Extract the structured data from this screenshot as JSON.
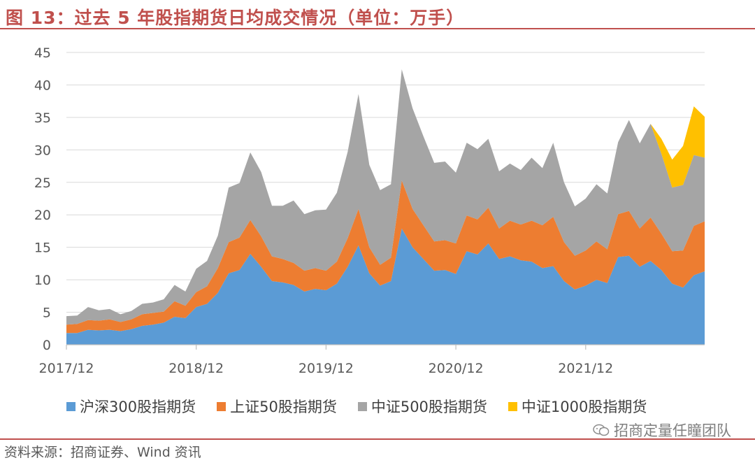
{
  "header": {
    "title": "图 13：过去 5 年股指期货日均成交情况（单位：万手）"
  },
  "footer": {
    "source": "资料来源：招商证券、Wind 资讯",
    "watermark": "招商定量任瞳团队"
  },
  "chart_data": {
    "type": "area",
    "stacked": true,
    "ylim": [
      0,
      45
    ],
    "yticks": [
      0,
      5,
      10,
      15,
      20,
      25,
      30,
      35,
      40,
      45
    ],
    "x_tick_labels": [
      "2017/12",
      "2018/12",
      "2019/12",
      "2020/12",
      "2021/12"
    ],
    "x_start": "2017/12",
    "x_end": "2022/10",
    "legend_position": "bottom",
    "grid": true,
    "series": [
      {
        "name": "沪深300股指期货",
        "color": "#5b9bd5",
        "values": [
          1.8,
          1.8,
          2.3,
          2.2,
          2.3,
          2.1,
          2.4,
          2.9,
          3.1,
          3.4,
          4.3,
          4.1,
          5.8,
          6.3,
          8.0,
          11.0,
          11.5,
          14.0,
          12.0,
          9.8,
          9.6,
          9.2,
          8.2,
          8.6,
          8.4,
          9.4,
          12.0,
          15.3,
          11.0,
          9.1,
          9.8,
          17.9,
          15.0,
          13.2,
          11.4,
          11.5,
          10.9,
          14.4,
          13.9,
          15.6,
          13.2,
          13.6,
          13.0,
          12.8,
          11.8,
          12.1,
          9.8,
          8.5,
          9.1,
          10.0,
          9.5,
          13.5,
          13.7,
          12.0,
          12.9,
          11.5,
          9.4,
          8.8,
          10.7,
          11.3
        ]
      },
      {
        "name": "上证50股指期货",
        "color": "#ed7d31",
        "values": [
          1.3,
          1.4,
          1.5,
          1.5,
          1.6,
          1.4,
          1.5,
          1.8,
          1.8,
          1.7,
          2.4,
          1.9,
          2.3,
          2.7,
          3.8,
          4.8,
          5.0,
          5.2,
          4.7,
          3.8,
          3.6,
          3.4,
          3.2,
          3.2,
          3.0,
          3.4,
          4.4,
          5.6,
          4.0,
          3.2,
          3.6,
          7.4,
          5.9,
          5.2,
          4.5,
          4.6,
          4.7,
          5.5,
          5.4,
          5.5,
          4.7,
          5.5,
          5.5,
          6.3,
          6.6,
          7.6,
          6.0,
          5.2,
          5.4,
          5.9,
          5.2,
          6.6,
          6.9,
          5.9,
          6.7,
          5.6,
          5.0,
          5.7,
          7.6,
          7.7
        ]
      },
      {
        "name": "中证500股指期货",
        "color": "#a5a5a5",
        "values": [
          1.3,
          1.3,
          2.0,
          1.6,
          1.6,
          1.2,
          1.3,
          1.6,
          1.6,
          1.9,
          2.5,
          2.2,
          3.6,
          3.9,
          5.0,
          8.4,
          8.4,
          10.4,
          9.9,
          7.8,
          8.2,
          9.6,
          8.7,
          8.9,
          9.4,
          10.6,
          13.3,
          17.7,
          12.7,
          11.5,
          11.3,
          17.1,
          15.5,
          13.7,
          12.1,
          12.1,
          10.9,
          11.2,
          10.8,
          10.6,
          8.8,
          8.8,
          8.4,
          9.7,
          8.8,
          11.4,
          9.2,
          7.6,
          8.0,
          8.8,
          8.6,
          11.1,
          14.0,
          13.1,
          14.4,
          12.3,
          9.8,
          10.1,
          10.9,
          9.8
        ]
      },
      {
        "name": "中证1000股指期货",
        "color": "#ffc000",
        "values": [
          0,
          0,
          0,
          0,
          0,
          0,
          0,
          0,
          0,
          0,
          0,
          0,
          0,
          0,
          0,
          0,
          0,
          0,
          0,
          0,
          0,
          0,
          0,
          0,
          0,
          0,
          0,
          0,
          0,
          0,
          0,
          0,
          0,
          0,
          0,
          0,
          0,
          0,
          0,
          0,
          0,
          0,
          0,
          0,
          0,
          0,
          0,
          0,
          0,
          0,
          0,
          0,
          0,
          0,
          0,
          2.3,
          4.3,
          6.0,
          7.5,
          6.3
        ]
      }
    ]
  }
}
